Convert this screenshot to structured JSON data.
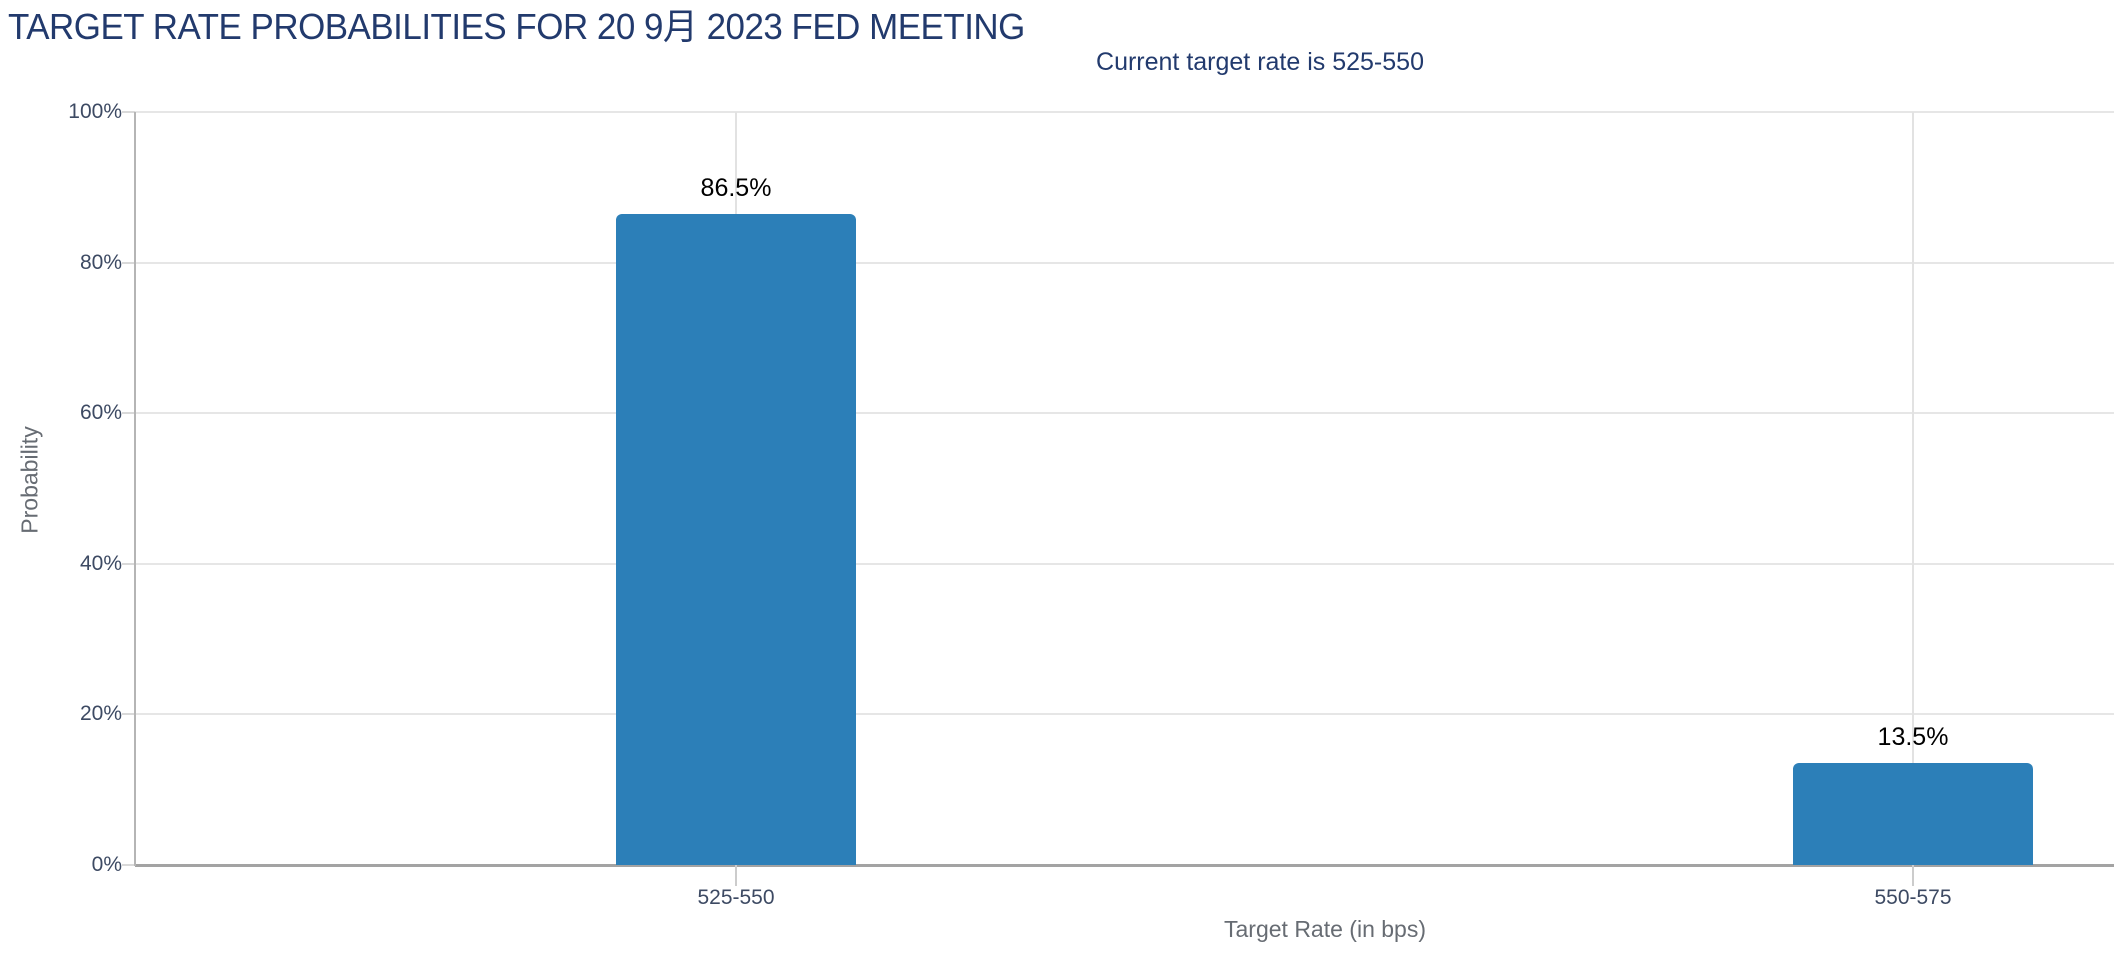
{
  "page": {
    "title": "TARGET RATE PROBABILITIES FOR 20 9月 2023 FED MEETING",
    "subtitle": "Current target rate is 525-550"
  },
  "colors": {
    "bar": "#2c7fb8",
    "title_text": "#223a6d",
    "tick_text": "#3d4a63",
    "axis_title_text": "#676c73",
    "gridline": "#e6e6e6",
    "axis_line": "#b5b5b5",
    "value_label_text": "#000000",
    "background": "#ffffff"
  },
  "chart_data": {
    "type": "bar",
    "title": "TARGET RATE PROBABILITIES FOR 20 9月 2023 FED MEETING",
    "subtitle": "Current target rate is 525-550",
    "categories": [
      "525-550",
      "550-575"
    ],
    "values": [
      86.5,
      13.5
    ],
    "value_labels": [
      "86.5%",
      "13.5%"
    ],
    "xlabel": "Target Rate (in bps)",
    "ylabel": "Probability",
    "ylim": [
      0,
      100
    ],
    "yticks": [
      0,
      20,
      40,
      60,
      80,
      100
    ],
    "ytick_labels": [
      "0%",
      "20%",
      "40%",
      "60%",
      "80%",
      "100%"
    ],
    "grid": true,
    "legend": false,
    "bar_color": "#2c7fb8"
  }
}
